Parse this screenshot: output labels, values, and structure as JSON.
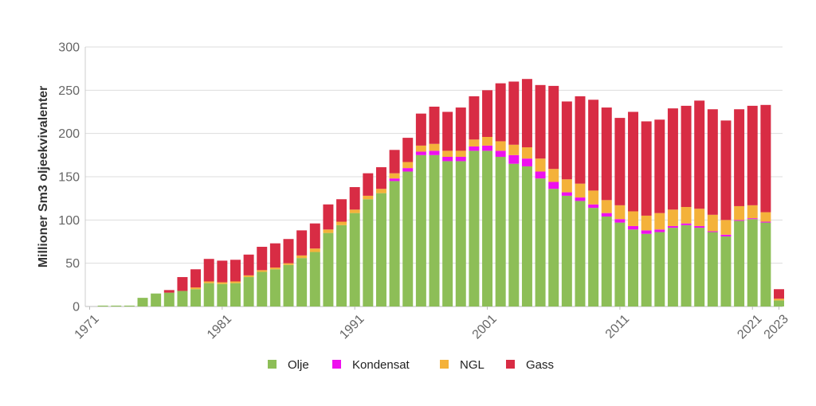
{
  "chart_data": {
    "type": "bar",
    "stacked": true,
    "title": "",
    "xlabel": "",
    "ylabel": "Millioner Sm3 oljeekvivalenter",
    "ylim": [
      0,
      300
    ],
    "yticks": [
      0,
      50,
      100,
      150,
      200,
      250,
      300
    ],
    "xticks": [
      "1971",
      "1981",
      "1991",
      "2001",
      "2011",
      "2021",
      "2023"
    ],
    "grid": true,
    "legend_position": "bottom",
    "categories": [
      1971,
      1972,
      1973,
      1974,
      1975,
      1976,
      1977,
      1978,
      1979,
      1980,
      1981,
      1982,
      1983,
      1984,
      1985,
      1986,
      1987,
      1988,
      1989,
      1990,
      1991,
      1992,
      1993,
      1994,
      1995,
      1996,
      1997,
      1998,
      1999,
      2000,
      2001,
      2002,
      2003,
      2004,
      2005,
      2006,
      2007,
      2008,
      2009,
      2010,
      2011,
      2012,
      2013,
      2014,
      2015,
      2016,
      2017,
      2018,
      2019,
      2020,
      2021,
      2022,
      2023
    ],
    "series": [
      {
        "name": "Olje",
        "color": "#8dbe57",
        "values": [
          0,
          1,
          1,
          1,
          10,
          15,
          16,
          18,
          20,
          27,
          26,
          27,
          34,
          40,
          43,
          48,
          56,
          63,
          85,
          94,
          108,
          124,
          131,
          145,
          156,
          175,
          175,
          168,
          168,
          180,
          180,
          173,
          165,
          162,
          148,
          136,
          128,
          122,
          114,
          104,
          97,
          89,
          84,
          86,
          91,
          94,
          91,
          86,
          81,
          99,
          101,
          97,
          7
        ]
      },
      {
        "name": "Kondensat",
        "color": "#ee10ee",
        "values": [
          0,
          0,
          0,
          0,
          0,
          0,
          0,
          0,
          0,
          0,
          0,
          0,
          0,
          0,
          0,
          0,
          0,
          0,
          0,
          0,
          0,
          0,
          0,
          3,
          4,
          4,
          5,
          5,
          5,
          5,
          6,
          7,
          10,
          9,
          8,
          8,
          4,
          4,
          4,
          4,
          4,
          4,
          4,
          3,
          2,
          2,
          2,
          1,
          2,
          1,
          1,
          1,
          0
        ]
      },
      {
        "name": "NGL",
        "color": "#f4b23a",
        "values": [
          0,
          0,
          0,
          0,
          0,
          0,
          0,
          0,
          2,
          2,
          2,
          2,
          2,
          2,
          2,
          2,
          3,
          4,
          4,
          4,
          4,
          4,
          5,
          6,
          7,
          7,
          8,
          7,
          7,
          8,
          10,
          11,
          12,
          13,
          15,
          15,
          15,
          16,
          16,
          15,
          16,
          17,
          17,
          19,
          19,
          19,
          20,
          19,
          17,
          16,
          15,
          11,
          2
        ]
      },
      {
        "name": "Gass",
        "color": "#d82c44",
        "values": [
          0,
          0,
          0,
          0,
          0,
          0,
          3,
          16,
          21,
          26,
          25,
          25,
          24,
          27,
          28,
          28,
          29,
          29,
          29,
          26,
          26,
          26,
          25,
          27,
          28,
          37,
          43,
          45,
          50,
          50,
          54,
          67,
          73,
          79,
          85,
          96,
          90,
          101,
          105,
          107,
          101,
          115,
          109,
          108,
          117,
          117,
          125,
          122,
          115,
          112,
          115,
          124,
          11
        ]
      }
    ]
  }
}
